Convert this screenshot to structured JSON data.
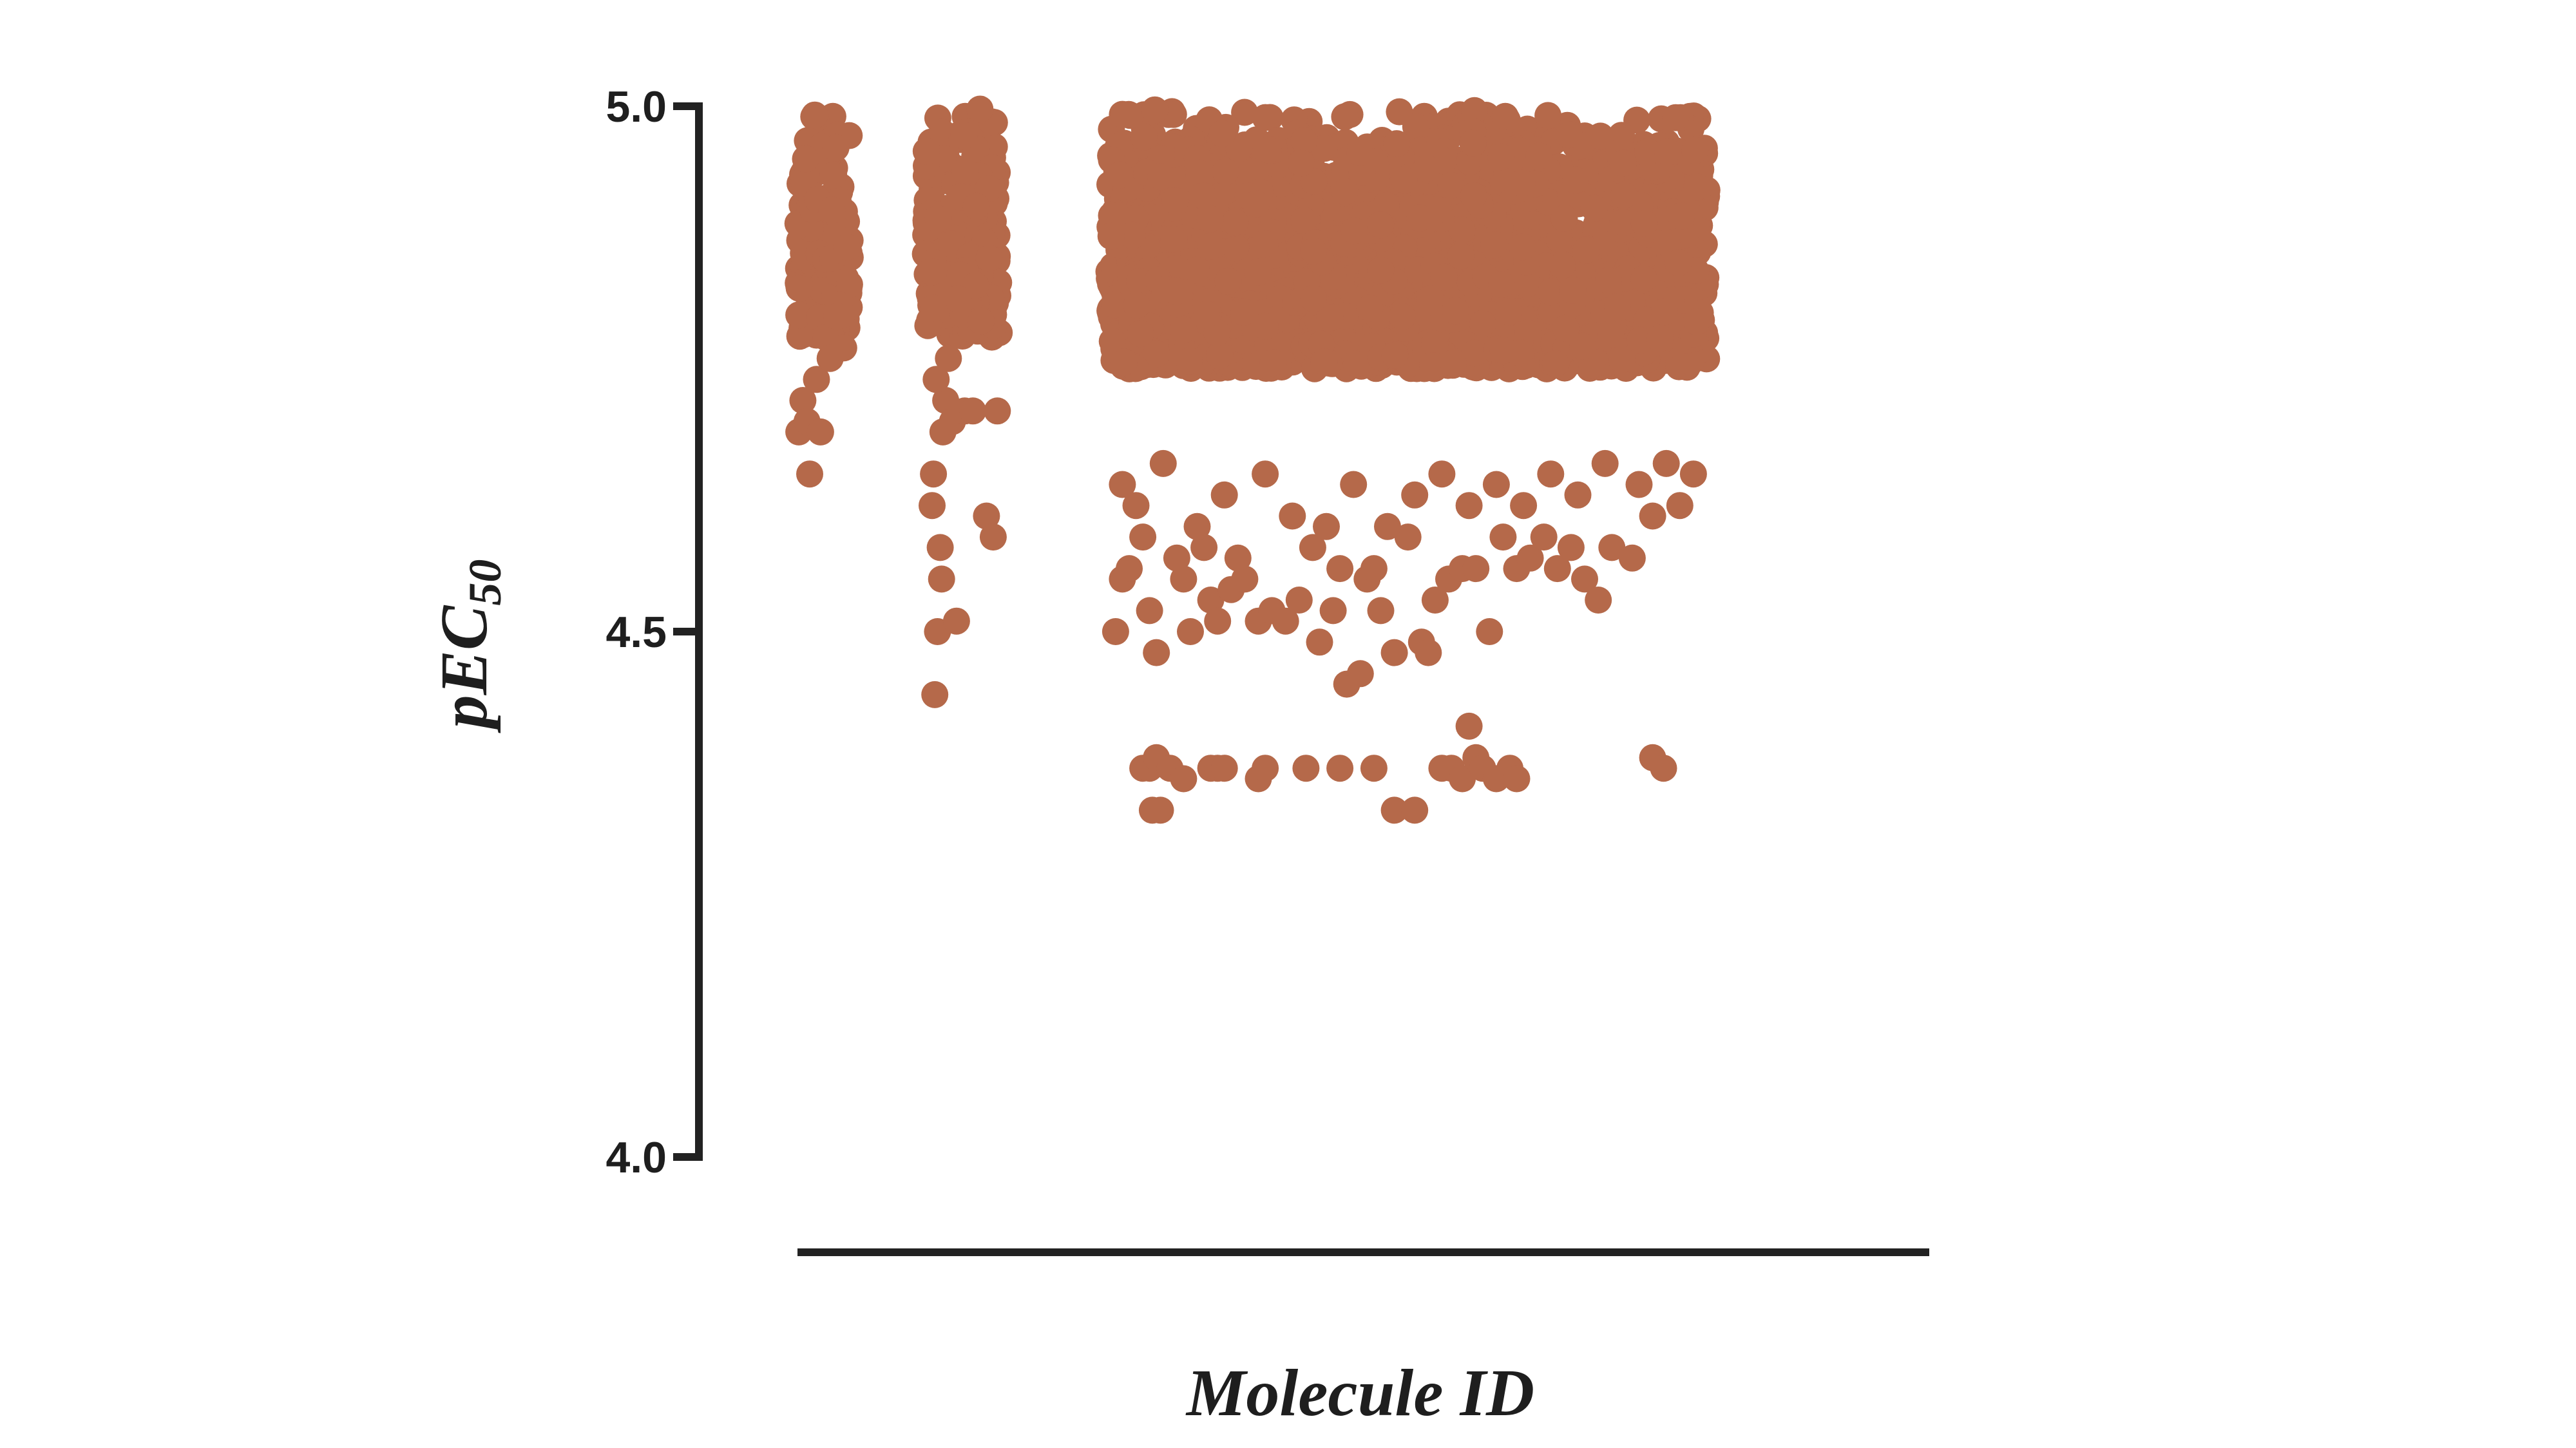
{
  "chart_data": {
    "type": "scatter",
    "title": "",
    "xlabel": "Molecule ID",
    "ylabel": "pEC",
    "ylabel_subscript": "50",
    "ylim": [
      4.0,
      5.0
    ],
    "y_ticks": [
      "4.0",
      "4.5",
      "5.0"
    ],
    "y_tick_values": [
      4.0,
      4.5,
      5.0
    ],
    "x_tick_labels": false,
    "grid": false,
    "legend": "none",
    "point_color": "#b5694a",
    "axis_color": "#222222",
    "groups": [
      {
        "x_range": [
          1,
          40
        ],
        "y_upper_band": [
          4.78,
          5.0
        ],
        "dense_count": 180,
        "sparse_points": [
          [
            2,
            4.69
          ],
          [
            5,
            4.72
          ],
          [
            8,
            4.7
          ],
          [
            10,
            4.65
          ],
          [
            15,
            4.74
          ],
          [
            18,
            4.69
          ],
          [
            22,
            4.78
          ],
          [
            25,
            4.76
          ],
          [
            30,
            4.8
          ],
          [
            35,
            4.77
          ]
        ]
      },
      {
        "x_range": [
          95,
          150
        ],
        "y_upper_band": [
          4.78,
          5.0
        ],
        "dense_count": 220,
        "sparse_points": [
          [
            100,
            4.62
          ],
          [
            101,
            4.65
          ],
          [
            102,
            4.44
          ],
          [
            104,
            4.5
          ],
          [
            106,
            4.58
          ],
          [
            107,
            4.55
          ],
          [
            108,
            4.69
          ],
          [
            110,
            4.72
          ],
          [
            115,
            4.7
          ],
          [
            118,
            4.51
          ],
          [
            124,
            4.71
          ],
          [
            130,
            4.71
          ],
          [
            140,
            4.61
          ],
          [
            145,
            4.59
          ],
          [
            148,
            4.71
          ],
          [
            103,
            4.74
          ],
          [
            112,
            4.76
          ]
        ]
      },
      {
        "x_range": [
          230,
          670
        ],
        "y_upper_band": [
          4.75,
          5.0
        ],
        "dense_count": 2400,
        "sparse_points": [
          [
            235,
            4.5
          ],
          [
            240,
            4.55
          ],
          [
            245,
            4.56
          ],
          [
            255,
            4.59
          ],
          [
            260,
            4.52
          ],
          [
            265,
            4.48
          ],
          [
            280,
            4.57
          ],
          [
            285,
            4.55
          ],
          [
            290,
            4.5
          ],
          [
            300,
            4.58
          ],
          [
            305,
            4.53
          ],
          [
            310,
            4.51
          ],
          [
            320,
            4.54
          ],
          [
            325,
            4.57
          ],
          [
            330,
            4.55
          ],
          [
            340,
            4.51
          ],
          [
            350,
            4.52
          ],
          [
            360,
            4.51
          ],
          [
            370,
            4.53
          ],
          [
            380,
            4.58
          ],
          [
            385,
            4.49
          ],
          [
            395,
            4.52
          ],
          [
            400,
            4.56
          ],
          [
            405,
            4.45
          ],
          [
            415,
            4.46
          ],
          [
            420,
            4.55
          ],
          [
            425,
            4.56
          ],
          [
            430,
            4.52
          ],
          [
            440,
            4.48
          ],
          [
            450,
            4.59
          ],
          [
            460,
            4.49
          ],
          [
            465,
            4.48
          ],
          [
            470,
            4.53
          ],
          [
            480,
            4.55
          ],
          [
            490,
            4.56
          ],
          [
            500,
            4.56
          ],
          [
            510,
            4.5
          ],
          [
            520,
            4.59
          ],
          [
            530,
            4.56
          ],
          [
            540,
            4.57
          ],
          [
            550,
            4.59
          ],
          [
            560,
            4.56
          ],
          [
            570,
            4.58
          ],
          [
            580,
            4.55
          ],
          [
            590,
            4.53
          ],
          [
            600,
            4.58
          ],
          [
            615,
            4.57
          ],
          [
            630,
            4.61
          ],
          [
            650,
            4.62
          ],
          [
            660,
            4.65
          ],
          [
            240,
            4.64
          ],
          [
            250,
            4.62
          ],
          [
            270,
            4.66
          ],
          [
            295,
            4.6
          ],
          [
            315,
            4.63
          ],
          [
            345,
            4.65
          ],
          [
            365,
            4.61
          ],
          [
            390,
            4.6
          ],
          [
            410,
            4.64
          ],
          [
            435,
            4.6
          ],
          [
            455,
            4.63
          ],
          [
            475,
            4.65
          ],
          [
            495,
            4.62
          ],
          [
            515,
            4.64
          ],
          [
            535,
            4.62
          ],
          [
            555,
            4.65
          ],
          [
            575,
            4.63
          ],
          [
            595,
            4.66
          ],
          [
            620,
            4.64
          ],
          [
            640,
            4.66
          ],
          [
            255,
            4.37
          ],
          [
            260,
            4.37
          ],
          [
            265,
            4.38
          ],
          [
            275,
            4.37
          ],
          [
            285,
            4.36
          ],
          [
            262,
            4.33
          ],
          [
            268,
            4.33
          ],
          [
            305,
            4.37
          ],
          [
            310,
            4.37
          ],
          [
            315,
            4.37
          ],
          [
            340,
            4.36
          ],
          [
            345,
            4.37
          ],
          [
            375,
            4.37
          ],
          [
            400,
            4.37
          ],
          [
            425,
            4.37
          ],
          [
            440,
            4.33
          ],
          [
            455,
            4.33
          ],
          [
            475,
            4.37
          ],
          [
            482,
            4.37
          ],
          [
            490,
            4.36
          ],
          [
            495,
            4.41
          ],
          [
            500,
            4.38
          ],
          [
            505,
            4.37
          ],
          [
            515,
            4.36
          ],
          [
            525,
            4.37
          ],
          [
            530,
            4.36
          ],
          [
            630,
            4.38
          ],
          [
            638,
            4.37
          ]
        ]
      }
    ]
  }
}
